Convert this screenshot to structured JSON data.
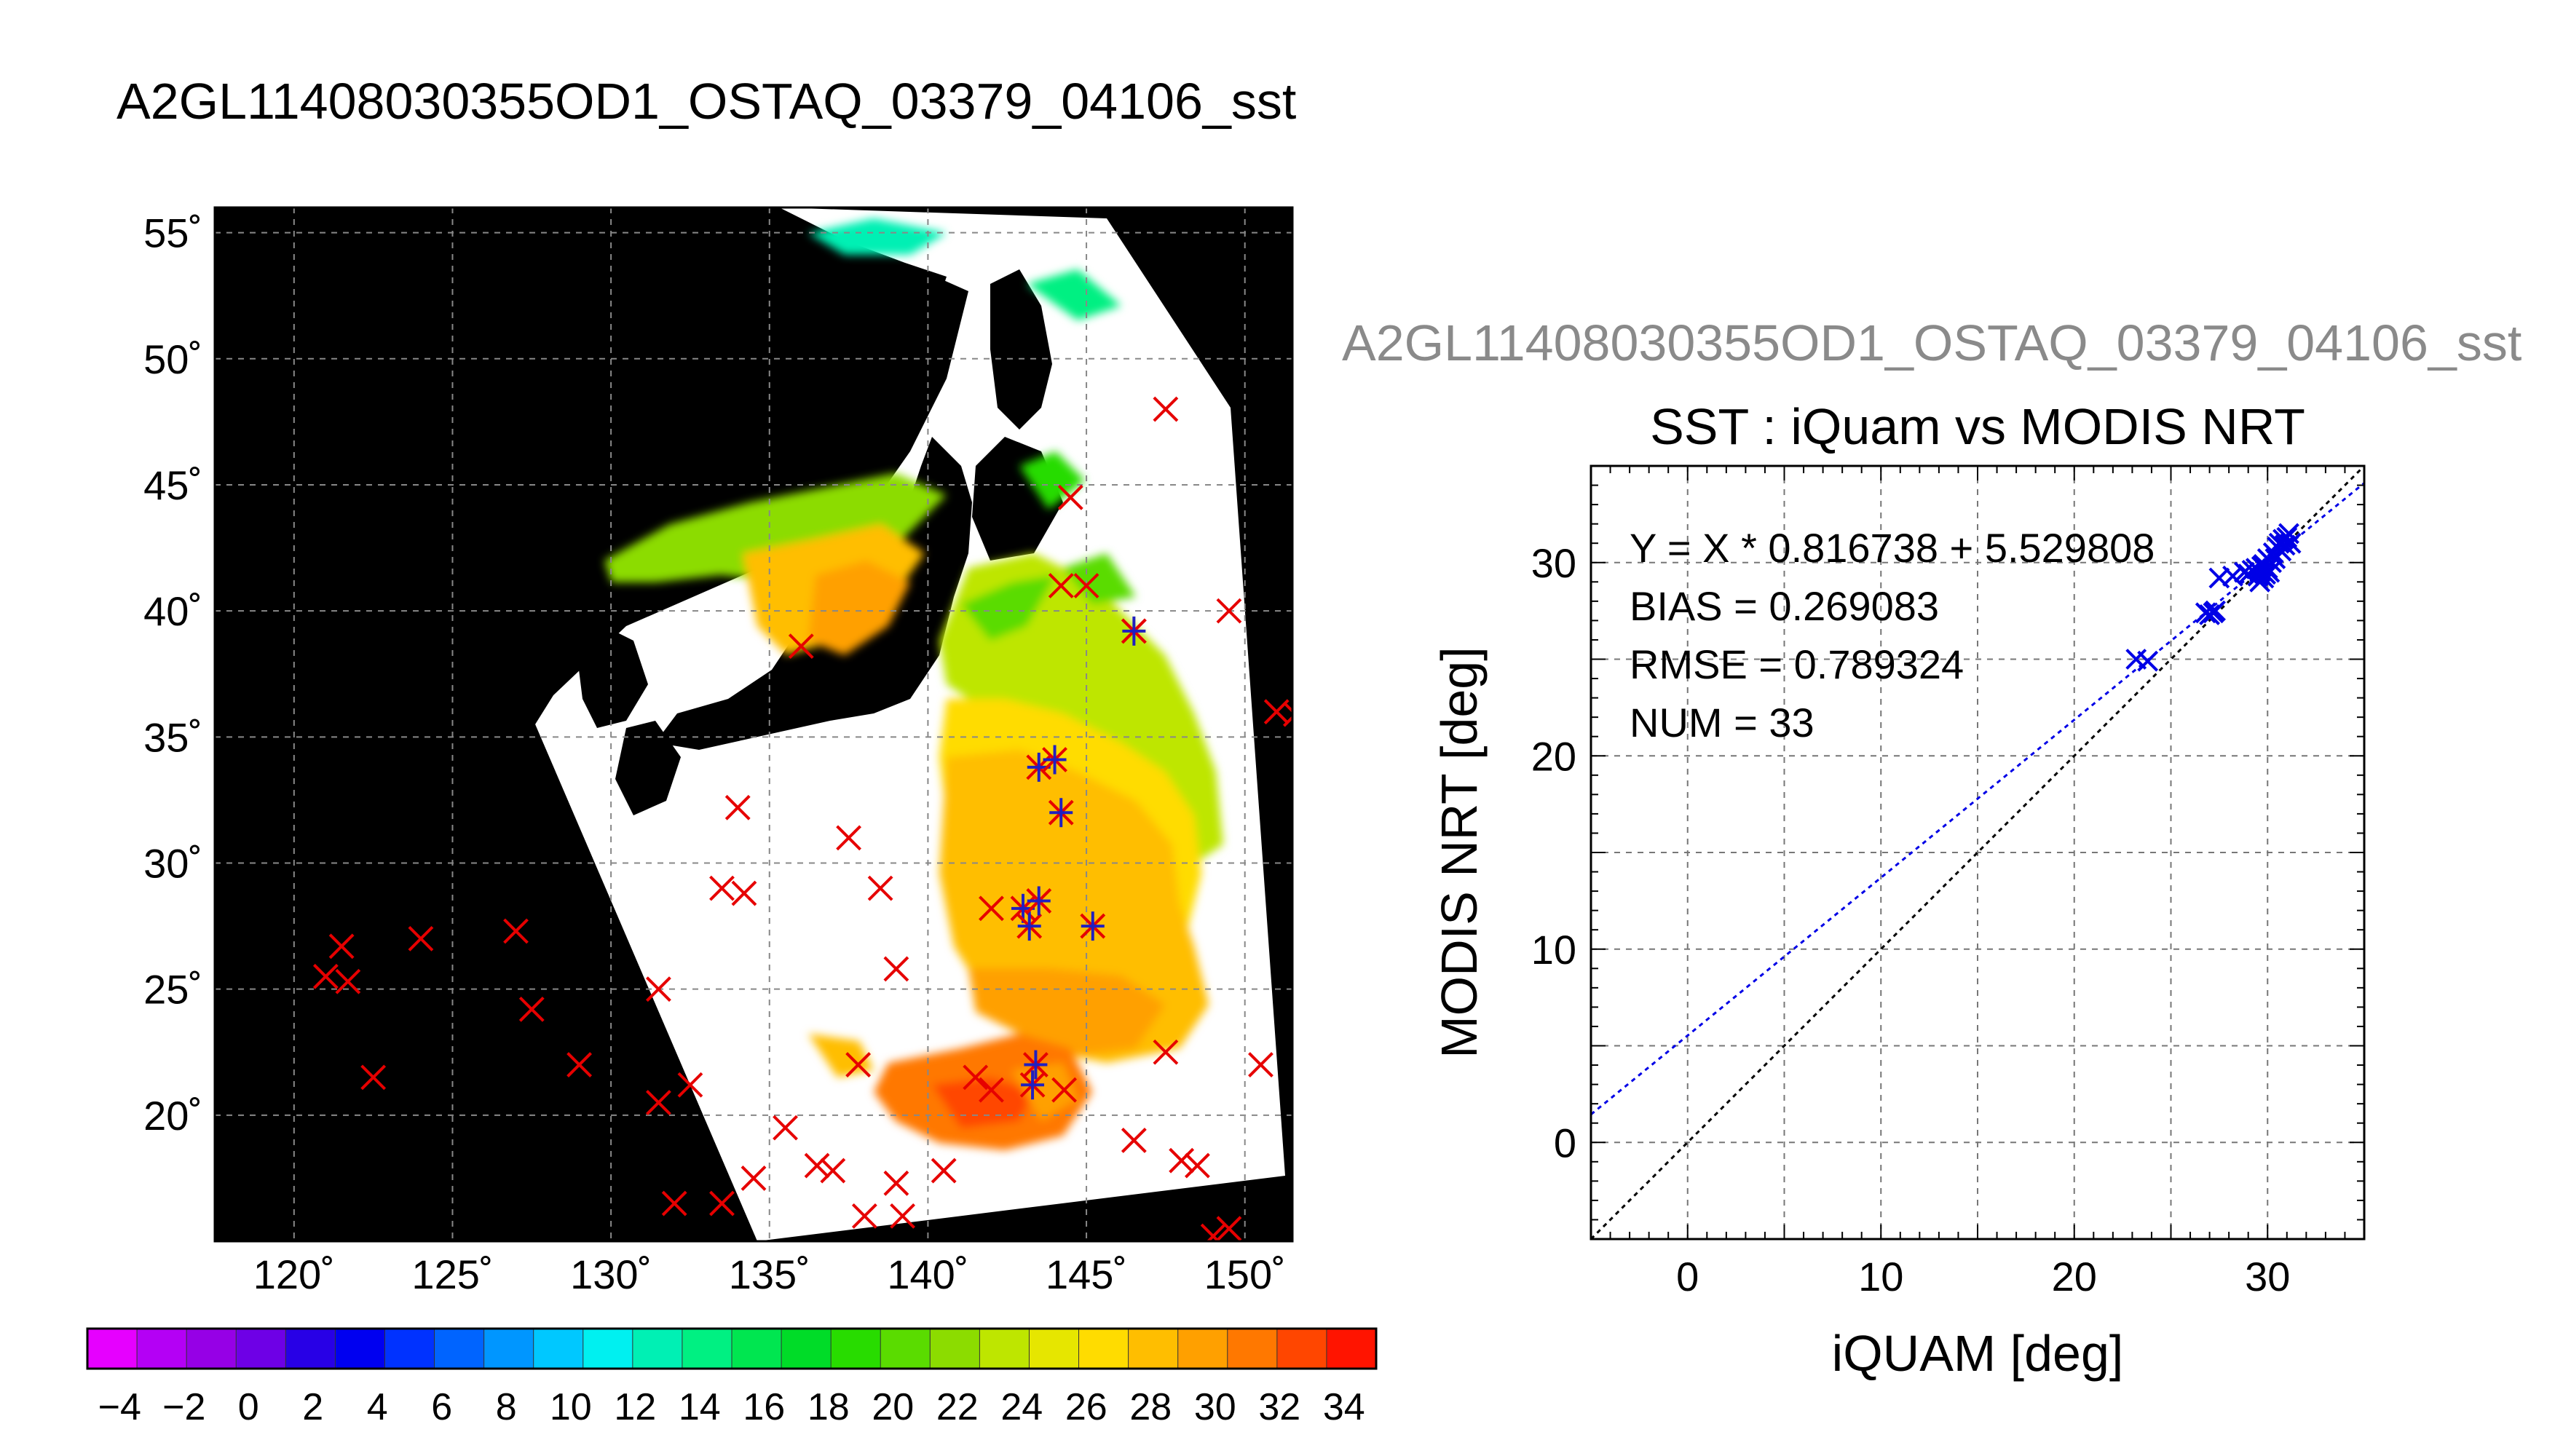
{
  "page_title": "A2GL11408030355OD1_OSTAQ_03379_04106_sst",
  "chart_data": [
    {
      "type": "map",
      "title": "A2GL11408030355OD1_OSTAQ_03379_04106_sst",
      "lon_range": [
        117.5,
        151.5
      ],
      "lat_range": [
        15,
        56
      ],
      "lon_ticks": [
        120,
        125,
        130,
        135,
        140,
        145,
        150
      ],
      "lat_ticks": [
        20,
        25,
        30,
        35,
        40,
        45,
        50,
        55
      ],
      "lon_tick_labels": [
        "120˚",
        "125˚",
        "130˚",
        "135˚",
        "140˚",
        "145˚",
        "150˚"
      ],
      "lat_tick_labels": [
        "20˚",
        "25˚",
        "30˚",
        "35˚",
        "40˚",
        "45˚",
        "50˚",
        "55˚"
      ],
      "grid": true,
      "colorbar": {
        "min": -5,
        "max": 35,
        "tick_labels": [
          "−4",
          "−2",
          "0",
          "2",
          "4",
          "6",
          "8",
          "10",
          "12",
          "14",
          "16",
          "18",
          "20",
          "22",
          "24",
          "26",
          "28",
          "30",
          "32",
          "34"
        ],
        "colors": [
          "#e600ff",
          "#b400f5",
          "#9600e6",
          "#6e00e6",
          "#2800e6",
          "#0000f0",
          "#0032ff",
          "#0064ff",
          "#0096ff",
          "#00c8ff",
          "#00f0f0",
          "#00f0b4",
          "#00f082",
          "#00e650",
          "#00dc28",
          "#28dc00",
          "#5adc00",
          "#8cdc00",
          "#bee600",
          "#e6e600",
          "#ffdc00",
          "#ffbe00",
          "#ffa000",
          "#ff7800",
          "#ff4600",
          "#ff1400"
        ]
      },
      "match_points_red": [
        [
          147.5,
          48
        ],
        [
          149.5,
          40
        ],
        [
          151,
          36
        ],
        [
          151.6,
          35.9
        ],
        [
          144.5,
          44.5
        ],
        [
          144.2,
          41
        ],
        [
          145,
          41
        ],
        [
          146.5,
          39.2
        ],
        [
          136,
          38.6
        ],
        [
          137.5,
          31
        ],
        [
          134,
          32.2
        ],
        [
          133.5,
          29
        ],
        [
          134.2,
          28.8
        ],
        [
          138.5,
          29
        ],
        [
          142,
          28.2
        ],
        [
          139,
          25.8
        ],
        [
          135.5,
          19.5
        ],
        [
          134.5,
          17.5
        ],
        [
          136.5,
          18
        ],
        [
          137,
          17.8
        ],
        [
          138,
          16
        ],
        [
          139,
          17.3
        ],
        [
          139.2,
          16
        ],
        [
          140.5,
          17.8
        ],
        [
          141.5,
          21.5
        ],
        [
          142,
          21
        ],
        [
          144.3,
          21
        ],
        [
          146.5,
          19
        ],
        [
          147.5,
          22.5
        ],
        [
          148,
          18.2
        ],
        [
          148.5,
          18
        ],
        [
          149,
          15.2
        ],
        [
          149.5,
          15.5
        ],
        [
          150.5,
          22
        ],
        [
          131.5,
          20.5
        ],
        [
          132.5,
          21.2
        ],
        [
          131.5,
          25
        ],
        [
          129,
          22
        ],
        [
          127.5,
          24.2
        ],
        [
          127,
          27.3
        ],
        [
          124,
          27
        ],
        [
          122.5,
          21.5
        ],
        [
          121.5,
          26.7
        ],
        [
          121,
          25.5
        ],
        [
          121.7,
          25.3
        ],
        [
          132,
          16.5
        ],
        [
          133.5,
          16.5
        ],
        [
          137.8,
          22
        ]
      ],
      "match_points_blue": [
        [
          143,
          28.2
        ],
        [
          143.2,
          27.5
        ],
        [
          143.5,
          28.5
        ],
        [
          145.2,
          27.5
        ],
        [
          143.5,
          33.8
        ],
        [
          144,
          34.1
        ],
        [
          144.2,
          32
        ],
        [
          146.5,
          39.2
        ],
        [
          143.4,
          22
        ],
        [
          143.3,
          21.2
        ]
      ]
    },
    {
      "type": "scatter",
      "header": "A2GL11408030355OD1_OSTAQ_03379_04106_sst",
      "title": "SST : iQuam vs MODIS NRT",
      "xlabel": "iQUAM [deg]",
      "ylabel": "MODIS NRT [deg]",
      "xlim": [
        -5,
        35
      ],
      "ylim": [
        -5,
        35
      ],
      "xticks": [
        0,
        10,
        20,
        30
      ],
      "yticks": [
        0,
        10,
        20,
        30
      ],
      "grid": true,
      "fit": {
        "slope": 0.816738,
        "intercept": 5.529808
      },
      "stats": [
        "Y = X * 0.816738 + 5.529808",
        "BIAS = 0.269083",
        "RMSE = 0.789324",
        "NUM = 33"
      ],
      "points": [
        [
          23.2,
          25.0
        ],
        [
          23.8,
          24.9
        ],
        [
          26.8,
          27.4
        ],
        [
          27.0,
          27.3
        ],
        [
          27.2,
          27.4
        ],
        [
          27.3,
          27.5
        ],
        [
          27.5,
          29.2
        ],
        [
          28.2,
          29.3
        ],
        [
          28.8,
          29.5
        ],
        [
          29.0,
          29.4
        ],
        [
          29.2,
          29.6
        ],
        [
          29.4,
          29.7
        ],
        [
          29.5,
          29.3
        ],
        [
          29.6,
          29.5
        ],
        [
          29.7,
          29.8
        ],
        [
          29.8,
          29.2
        ],
        [
          29.9,
          29.4
        ],
        [
          30.0,
          29.7
        ],
        [
          30.1,
          29.5
        ],
        [
          30.2,
          30.0
        ],
        [
          30.3,
          30.5
        ],
        [
          30.4,
          30.2
        ],
        [
          30.5,
          30.8
        ],
        [
          30.6,
          31.0
        ],
        [
          30.7,
          30.6
        ],
        [
          30.8,
          31.2
        ],
        [
          30.9,
          30.9
        ],
        [
          31.0,
          31.3
        ],
        [
          31.1,
          31.5
        ],
        [
          31.2,
          31.0
        ],
        [
          29.6,
          29.0
        ],
        [
          29.8,
          29.9
        ],
        [
          30.0,
          30.2
        ]
      ]
    }
  ]
}
